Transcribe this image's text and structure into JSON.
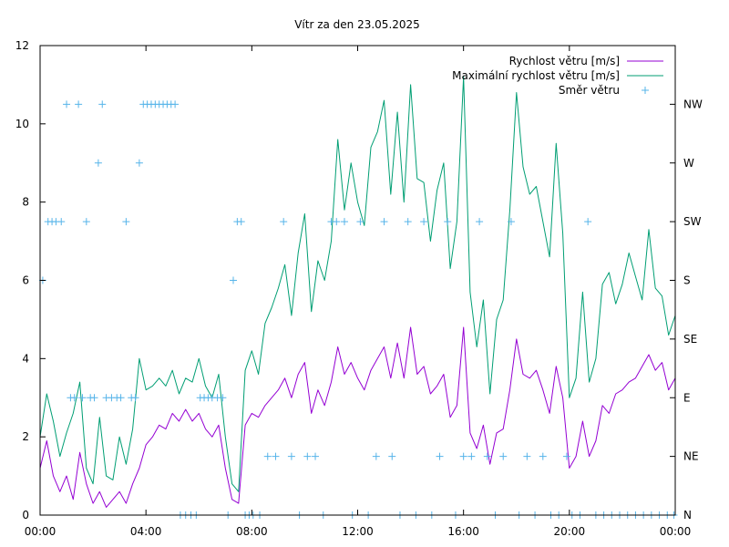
{
  "chart_data": {
    "type": "line",
    "title": "Vítr za den 23.05.2025",
    "xlabel": "",
    "ylabel": "",
    "x_unit": "hours",
    "xlim": [
      0,
      24
    ],
    "ylim": [
      0,
      12
    ],
    "x_ticks": [
      {
        "value": 0,
        "label": "00:00"
      },
      {
        "value": 4,
        "label": "04:00"
      },
      {
        "value": 8,
        "label": "08:00"
      },
      {
        "value": 12,
        "label": "12:00"
      },
      {
        "value": 16,
        "label": "16:00"
      },
      {
        "value": 20,
        "label": "20:00"
      },
      {
        "value": 24,
        "label": "00:00"
      }
    ],
    "y_ticks": [
      0,
      2,
      4,
      6,
      8,
      10,
      12
    ],
    "y2_ticks": [
      {
        "value": 0,
        "label": "N"
      },
      {
        "value": 1.5,
        "label": "NE"
      },
      {
        "value": 3,
        "label": "E"
      },
      {
        "value": 4.5,
        "label": "SE"
      },
      {
        "value": 6,
        "label": "S"
      },
      {
        "value": 7.5,
        "label": "SW"
      },
      {
        "value": 9,
        "label": "W"
      },
      {
        "value": 10.5,
        "label": "NW"
      }
    ],
    "grid": false,
    "legend_position": "top-right",
    "series": [
      {
        "name": "Rychlost větru [m/s]",
        "color": "#9400d3",
        "x": [
          0,
          0.25,
          0.5,
          0.75,
          1,
          1.25,
          1.5,
          1.75,
          2,
          2.25,
          2.5,
          2.75,
          3,
          3.25,
          3.5,
          3.75,
          4,
          4.25,
          4.5,
          4.75,
          5,
          5.25,
          5.5,
          5.75,
          6,
          6.25,
          6.5,
          6.75,
          7,
          7.25,
          7.5,
          7.75,
          8,
          8.25,
          8.5,
          8.75,
          9,
          9.25,
          9.5,
          9.75,
          10,
          10.25,
          10.5,
          10.75,
          11,
          11.25,
          11.5,
          11.75,
          12,
          12.25,
          12.5,
          12.75,
          13,
          13.25,
          13.5,
          13.75,
          14,
          14.25,
          14.5,
          14.75,
          15,
          15.25,
          15.5,
          15.75,
          16,
          16.25,
          16.5,
          16.75,
          17,
          17.25,
          17.5,
          17.75,
          18,
          18.25,
          18.5,
          18.75,
          19,
          19.25,
          19.5,
          19.75,
          20,
          20.25,
          20.5,
          20.75,
          21,
          21.25,
          21.5,
          21.75,
          22,
          22.25,
          22.5,
          22.75,
          23,
          23.25,
          23.5,
          23.75,
          24
        ],
        "y": [
          1.2,
          1.9,
          1.0,
          0.6,
          1.0,
          0.4,
          1.6,
          0.8,
          0.3,
          0.6,
          0.2,
          0.4,
          0.6,
          0.3,
          0.8,
          1.2,
          1.8,
          2.0,
          2.3,
          2.2,
          2.6,
          2.4,
          2.7,
          2.4,
          2.6,
          2.2,
          2.0,
          2.3,
          1.2,
          0.4,
          0.3,
          2.3,
          2.6,
          2.5,
          2.8,
          3.0,
          3.2,
          3.5,
          3.0,
          3.6,
          3.9,
          2.6,
          3.2,
          2.8,
          3.4,
          4.3,
          3.6,
          3.9,
          3.5,
          3.2,
          3.7,
          4.0,
          4.3,
          3.5,
          4.4,
          3.5,
          4.8,
          3.6,
          3.8,
          3.1,
          3.3,
          3.6,
          2.5,
          2.8,
          4.8,
          2.1,
          1.7,
          2.3,
          1.3,
          2.1,
          2.2,
          3.2,
          4.5,
          3.6,
          3.5,
          3.7,
          3.2,
          2.6,
          3.8,
          3.0,
          1.2,
          1.5,
          2.4,
          1.5,
          1.9,
          2.8,
          2.6,
          3.1,
          3.2,
          3.4,
          3.5,
          3.8,
          4.1,
          3.7,
          3.9,
          3.2,
          3.5
        ]
      },
      {
        "name": "Maximální rychlost větru [m/s]",
        "color": "#009e73",
        "x": [
          0,
          0.25,
          0.5,
          0.75,
          1,
          1.25,
          1.5,
          1.75,
          2,
          2.25,
          2.5,
          2.75,
          3,
          3.25,
          3.5,
          3.75,
          4,
          4.25,
          4.5,
          4.75,
          5,
          5.25,
          5.5,
          5.75,
          6,
          6.25,
          6.5,
          6.75,
          7,
          7.25,
          7.5,
          7.75,
          8,
          8.25,
          8.5,
          8.75,
          9,
          9.25,
          9.5,
          9.75,
          10,
          10.25,
          10.5,
          10.75,
          11,
          11.25,
          11.5,
          11.75,
          12,
          12.25,
          12.5,
          12.75,
          13,
          13.25,
          13.5,
          13.75,
          14,
          14.25,
          14.5,
          14.75,
          15,
          15.25,
          15.5,
          15.75,
          16,
          16.25,
          16.5,
          16.75,
          17,
          17.25,
          17.5,
          17.75,
          18,
          18.25,
          18.5,
          18.75,
          19,
          19.25,
          19.5,
          19.75,
          20,
          20.25,
          20.5,
          20.75,
          21,
          21.25,
          21.5,
          21.75,
          22,
          22.25,
          22.5,
          22.75,
          23,
          23.25,
          23.5,
          23.75,
          24
        ],
        "y": [
          2.0,
          3.1,
          2.4,
          1.5,
          2.1,
          2.6,
          3.4,
          1.2,
          0.8,
          2.5,
          1.0,
          0.9,
          2.0,
          1.3,
          2.2,
          4.0,
          3.2,
          3.3,
          3.5,
          3.3,
          3.7,
          3.1,
          3.5,
          3.4,
          4.0,
          3.3,
          3.0,
          3.6,
          2.0,
          0.8,
          0.6,
          3.7,
          4.2,
          3.6,
          4.9,
          5.3,
          5.8,
          6.4,
          5.1,
          6.7,
          7.7,
          5.2,
          6.5,
          6.0,
          7.0,
          9.6,
          7.8,
          9.0,
          8.0,
          7.4,
          9.4,
          9.8,
          10.6,
          8.2,
          10.3,
          8.0,
          11.0,
          8.6,
          8.5,
          7.0,
          8.3,
          9.0,
          6.3,
          7.5,
          11.2,
          5.7,
          4.3,
          5.5,
          3.1,
          5.0,
          5.5,
          7.8,
          10.8,
          8.9,
          8.2,
          8.4,
          7.5,
          6.6,
          9.5,
          7.2,
          3.0,
          3.5,
          5.7,
          3.4,
          4.0,
          5.9,
          6.2,
          5.4,
          5.9,
          6.7,
          6.1,
          5.5,
          7.3,
          5.8,
          5.6,
          4.6,
          5.1
        ]
      },
      {
        "name": "Směr větru",
        "color": "#56b4e9",
        "marker": "plus",
        "x": [
          0.1,
          0.3,
          0.45,
          0.6,
          0.8,
          1.0,
          1.15,
          1.3,
          1.45,
          1.6,
          1.75,
          1.9,
          2.05,
          2.2,
          2.35,
          2.5,
          2.7,
          2.9,
          3.05,
          3.25,
          3.45,
          3.6,
          3.75,
          3.9,
          4.05,
          4.2,
          4.35,
          4.5,
          4.65,
          4.8,
          4.95,
          5.1,
          5.3,
          5.5,
          5.7,
          5.9,
          6.05,
          6.2,
          6.35,
          6.5,
          6.7,
          6.9,
          7.1,
          7.3,
          7.45,
          7.6,
          7.75,
          7.9,
          8.05,
          8.3,
          8.6,
          8.9,
          9.2,
          9.5,
          9.8,
          10.1,
          10.4,
          10.7,
          11.0,
          11.2,
          11.5,
          11.8,
          12.1,
          12.4,
          12.7,
          13.0,
          13.3,
          13.6,
          13.9,
          14.2,
          14.5,
          14.8,
          15.1,
          15.4,
          15.7,
          16.0,
          16.3,
          16.6,
          16.9,
          17.2,
          17.5,
          17.8,
          18.1,
          18.4,
          18.7,
          19.0,
          19.3,
          19.6,
          19.9,
          20.1,
          20.4,
          20.7,
          21.0,
          21.3,
          21.6,
          21.9,
          22.2,
          22.5,
          22.8,
          23.1,
          23.4,
          23.7,
          23.95
        ],
        "y": [
          6,
          7.5,
          7.5,
          7.5,
          7.5,
          10.5,
          3,
          3,
          10.5,
          3,
          7.5,
          3,
          3,
          9,
          10.5,
          3,
          3,
          3,
          3,
          7.5,
          3,
          3,
          9,
          10.5,
          10.5,
          10.5,
          10.5,
          10.5,
          10.5,
          10.5,
          10.5,
          10.5,
          0,
          0,
          0,
          0,
          3,
          3,
          3,
          3,
          3,
          3,
          0,
          6,
          7.5,
          7.5,
          0,
          0,
          0,
          0,
          1.5,
          1.5,
          7.5,
          1.5,
          0,
          1.5,
          1.5,
          0,
          7.5,
          7.5,
          7.5,
          0,
          7.5,
          0,
          1.5,
          7.5,
          1.5,
          0,
          7.5,
          0,
          7.5,
          0,
          1.5,
          7.5,
          0,
          1.5,
          1.5,
          7.5,
          1.5,
          0,
          1.5,
          7.5,
          0,
          1.5,
          0,
          1.5,
          0,
          0,
          1.5,
          0,
          0,
          7.5,
          0,
          0,
          0,
          0,
          0,
          0,
          0,
          0,
          0,
          0,
          0
        ]
      }
    ]
  }
}
